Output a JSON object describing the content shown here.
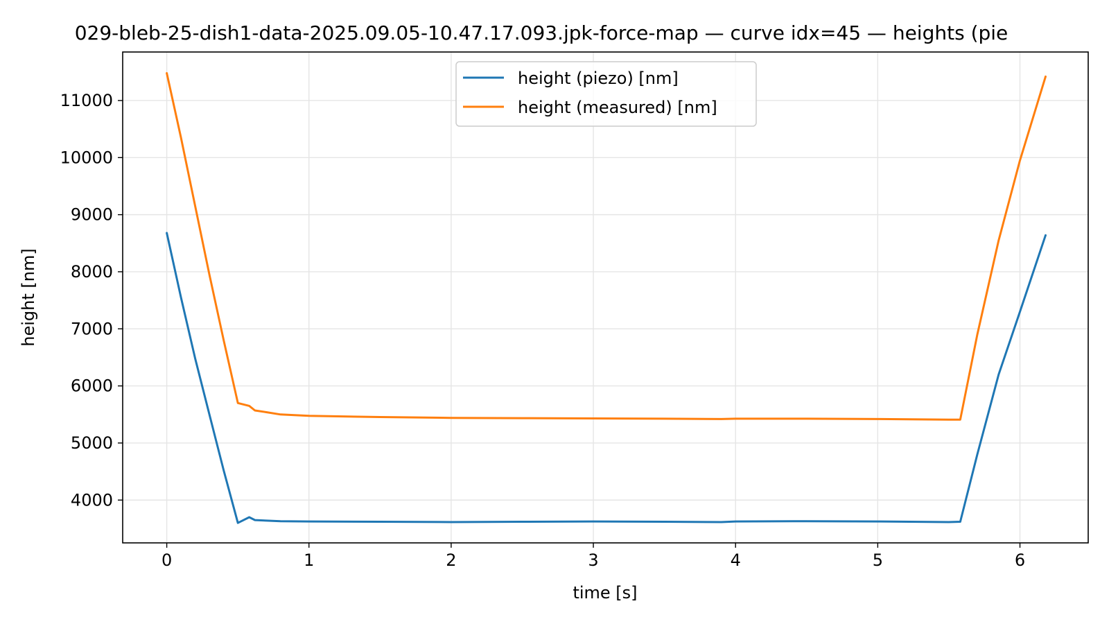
{
  "chart_data": {
    "type": "line",
    "title": "029-bleb-25-dish1-data-2025.09.05-10.47.17.093.jpk-force-map — curve idx=45 — heights (pie",
    "xlabel": "time [s]",
    "ylabel": "height [nm]",
    "xlim": [
      -0.31,
      6.48
    ],
    "ylim": [
      3250,
      11850
    ],
    "xticks": [
      0,
      1,
      2,
      3,
      4,
      5,
      6
    ],
    "xtick_labels": [
      "0",
      "1",
      "2",
      "3",
      "4",
      "5",
      "6"
    ],
    "yticks": [
      4000,
      5000,
      6000,
      7000,
      8000,
      9000,
      10000,
      11000
    ],
    "ytick_labels": [
      "4000",
      "5000",
      "6000",
      "7000",
      "8000",
      "9000",
      "10000",
      "11000"
    ],
    "grid": true,
    "legend_position": "top-center",
    "series": [
      {
        "name": "height (piezo) [nm]",
        "color": "#1f77b4",
        "x": [
          0,
          0.1,
          0.2,
          0.3,
          0.4,
          0.5,
          0.58,
          0.62,
          0.7,
          0.8,
          1.0,
          1.5,
          2.0,
          2.5,
          3.0,
          3.5,
          3.9,
          4.0,
          4.5,
          5.0,
          5.5,
          5.58,
          5.7,
          5.85,
          6.0,
          6.18
        ],
        "y": [
          8680,
          7550,
          6480,
          5500,
          4520,
          3600,
          3700,
          3650,
          3640,
          3630,
          3625,
          3620,
          3615,
          3620,
          3625,
          3620,
          3615,
          3625,
          3630,
          3625,
          3615,
          3620,
          4800,
          6200,
          7300,
          8640
        ]
      },
      {
        "name": "height (measured) [nm]",
        "color": "#ff7f0e",
        "x": [
          0,
          0.1,
          0.2,
          0.3,
          0.4,
          0.5,
          0.58,
          0.62,
          0.7,
          0.8,
          1.0,
          1.5,
          2.0,
          2.5,
          3.0,
          3.5,
          3.9,
          4.0,
          4.5,
          5.0,
          5.5,
          5.58,
          5.7,
          5.85,
          6.0,
          6.18
        ],
        "y": [
          11480,
          10350,
          9150,
          7950,
          6800,
          5700,
          5650,
          5570,
          5540,
          5500,
          5475,
          5455,
          5440,
          5435,
          5430,
          5425,
          5420,
          5425,
          5425,
          5420,
          5410,
          5410,
          6900,
          8550,
          9950,
          11420
        ]
      }
    ]
  }
}
